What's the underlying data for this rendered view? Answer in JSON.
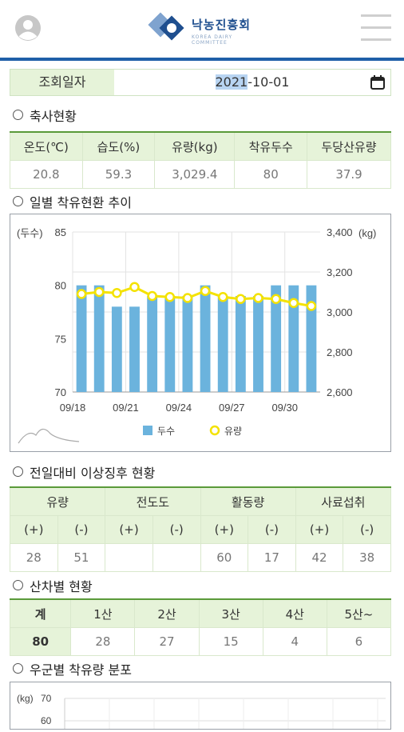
{
  "header": {
    "logo_ko": "낙농진흥회",
    "logo_en": "KOREA DAIRY COMMITTEE"
  },
  "query": {
    "label": "조회일자",
    "date_year": "2021",
    "date_rest": "-10-01"
  },
  "barn_status": {
    "title": "축사현황",
    "headers": [
      "온도(℃)",
      "습도(%)",
      "유량(kg)",
      "착유두수",
      "두당산유량"
    ],
    "values": [
      "20.8",
      "59.3",
      "3,029.4",
      "80",
      "37.9"
    ]
  },
  "daily_trend": {
    "title": "일별 착유현환 추이",
    "left_unit": "(두수)",
    "right_unit": "(kg)",
    "legend": [
      "두수",
      "유량"
    ]
  },
  "chart_data": {
    "type": "bar",
    "categories": [
      "09/18",
      "09/19",
      "09/20",
      "09/21",
      "09/22",
      "09/23",
      "09/24",
      "09/25",
      "09/26",
      "09/27",
      "09/28",
      "09/29",
      "09/30",
      "10/01"
    ],
    "x_tick_labels": [
      "09/18",
      "09/21",
      "09/24",
      "09/27",
      "09/30"
    ],
    "series": [
      {
        "name": "두수",
        "type": "bar",
        "axis": "left",
        "color": "#6bb3dd",
        "values": [
          80,
          80,
          78,
          78,
          79,
          79,
          79,
          80,
          79,
          79,
          79,
          80,
          80,
          80
        ]
      },
      {
        "name": "유량",
        "type": "line",
        "axis": "right",
        "color": "#f4e200",
        "values": [
          3090,
          3100,
          3095,
          3125,
          3080,
          3075,
          3070,
          3105,
          3075,
          3065,
          3070,
          3065,
          3045,
          3030
        ]
      }
    ],
    "y_left": {
      "ylim": [
        70,
        85
      ],
      "ticks": [
        "70",
        "75",
        "80",
        "85"
      ]
    },
    "y_right": {
      "ylim": [
        2600,
        3400
      ],
      "ticks": [
        "2,600",
        "2,800",
        "3,000",
        "3,200",
        "3,400"
      ]
    },
    "grid": true,
    "legend_position": "bottom"
  },
  "anomaly": {
    "title": "전일대비 이상징후 현황",
    "groups": [
      "유량",
      "전도도",
      "활동량",
      "사료섭취"
    ],
    "signs": [
      "(+)",
      "(-)",
      "(+)",
      "(-)",
      "(+)",
      "(-)",
      "(+)",
      "(-)"
    ],
    "values": [
      "28",
      "51",
      "",
      "",
      "60",
      "17",
      "42",
      "38"
    ]
  },
  "parity": {
    "title": "산차별 현황",
    "headers": [
      "계",
      "1산",
      "2산",
      "3산",
      "4산",
      "5산~"
    ],
    "values": [
      "80",
      "28",
      "27",
      "15",
      "4",
      "6"
    ]
  },
  "group_dist": {
    "title": "우군별 착유량 분포",
    "unit": "(kg)",
    "top_tick": "70",
    "next_tick": "60"
  },
  "colors": {
    "accent": "#1f5fa8",
    "header_bg": "#e6f3d9",
    "header_line": "#5a9a3a",
    "bar": "#6bb3dd",
    "line": "#f4e200"
  }
}
